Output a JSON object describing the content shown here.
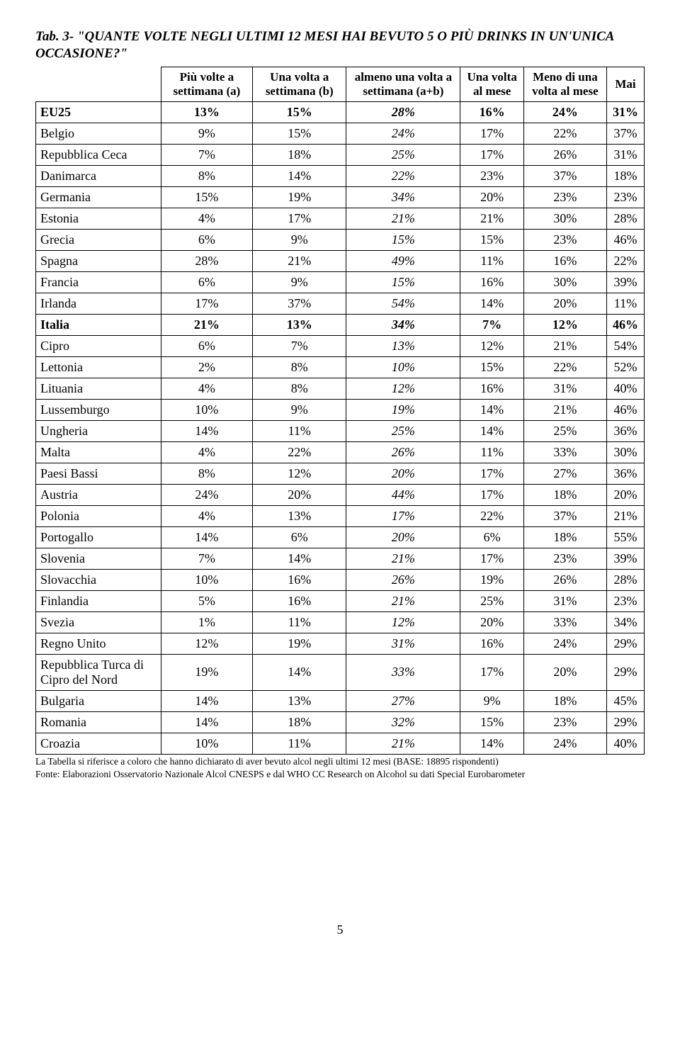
{
  "title": "Tab. 3- \"QUANTE VOLTE NEGLI ULTIMI 12 MESI HAI BEVUTO 5 O PIÙ DRINKS IN UN'UNICA OCCASIONE?\"",
  "headers": [
    "",
    "Più volte a settimana (a)",
    "Una volta a settimana (b)",
    "almeno una volta a settimana (a+b)",
    "Una volta al mese",
    "Meno di una volta al mese",
    "Mai"
  ],
  "boldRows": [
    "EU25",
    "Italia"
  ],
  "rows": [
    [
      "EU25",
      "13%",
      "15%",
      "28%",
      "16%",
      "24%",
      "31%"
    ],
    [
      "Belgio",
      "9%",
      "15%",
      "24%",
      "17%",
      "22%",
      "37%"
    ],
    [
      "Repubblica Ceca",
      "7%",
      "18%",
      "25%",
      "17%",
      "26%",
      "31%"
    ],
    [
      "Danimarca",
      "8%",
      "14%",
      "22%",
      "23%",
      "37%",
      "18%"
    ],
    [
      "Germania",
      "15%",
      "19%",
      "34%",
      "20%",
      "23%",
      "23%"
    ],
    [
      "Estonia",
      "4%",
      "17%",
      "21%",
      "21%",
      "30%",
      "28%"
    ],
    [
      "Grecia",
      "6%",
      "9%",
      "15%",
      "15%",
      "23%",
      "46%"
    ],
    [
      "Spagna",
      "28%",
      "21%",
      "49%",
      "11%",
      "16%",
      "22%"
    ],
    [
      "Francia",
      "6%",
      "9%",
      "15%",
      "16%",
      "30%",
      "39%"
    ],
    [
      "Irlanda",
      "17%",
      "37%",
      "54%",
      "14%",
      "20%",
      "11%"
    ],
    [
      "Italia",
      "21%",
      "13%",
      "34%",
      "7%",
      "12%",
      "46%"
    ],
    [
      "Cipro",
      "6%",
      "7%",
      "13%",
      "12%",
      "21%",
      "54%"
    ],
    [
      "Lettonia",
      "2%",
      "8%",
      "10%",
      "15%",
      "22%",
      "52%"
    ],
    [
      "Lituania",
      "4%",
      "8%",
      "12%",
      "16%",
      "31%",
      "40%"
    ],
    [
      "Lussemburgo",
      "10%",
      "9%",
      "19%",
      "14%",
      "21%",
      "46%"
    ],
    [
      "Ungheria",
      "14%",
      "11%",
      "25%",
      "14%",
      "25%",
      "36%"
    ],
    [
      "Malta",
      "4%",
      "22%",
      "26%",
      "11%",
      "33%",
      "30%"
    ],
    [
      "Paesi Bassi",
      "8%",
      "12%",
      "20%",
      "17%",
      "27%",
      "36%"
    ],
    [
      "Austria",
      "24%",
      "20%",
      "44%",
      "17%",
      "18%",
      "20%"
    ],
    [
      "Polonia",
      "4%",
      "13%",
      "17%",
      "22%",
      "37%",
      "21%"
    ],
    [
      "Portogallo",
      "14%",
      "6%",
      "20%",
      "6%",
      "18%",
      "55%"
    ],
    [
      "Slovenia",
      "7%",
      "14%",
      "21%",
      "17%",
      "23%",
      "39%"
    ],
    [
      "Slovacchia",
      "10%",
      "16%",
      "26%",
      "19%",
      "26%",
      "28%"
    ],
    [
      "Finlandia",
      "5%",
      "16%",
      "21%",
      "25%",
      "31%",
      "23%"
    ],
    [
      "Svezia",
      "1%",
      "11%",
      "12%",
      "20%",
      "33%",
      "34%"
    ],
    [
      "Regno Unito",
      "12%",
      "19%",
      "31%",
      "16%",
      "24%",
      "29%"
    ],
    [
      "Repubblica Turca di Cipro del Nord",
      "19%",
      "14%",
      "33%",
      "17%",
      "20%",
      "29%"
    ],
    [
      "Bulgaria",
      "14%",
      "13%",
      "27%",
      "9%",
      "18%",
      "45%"
    ],
    [
      "Romania",
      "14%",
      "18%",
      "32%",
      "15%",
      "23%",
      "29%"
    ],
    [
      "Croazia",
      "10%",
      "11%",
      "21%",
      "14%",
      "24%",
      "40%"
    ]
  ],
  "footnote1": "La Tabella si riferisce a coloro che hanno dichiarato di aver bevuto alcol negli ultimi 12 mesi (BASE: 18895 rispondenti)",
  "footnote2": "Fonte: Elaborazioni Osservatorio Nazionale Alcol CNESPS e dal WHO CC Research on Alcohol su dati Special Eurobarometer",
  "pageNumber": "5",
  "italicValueColumns": [
    3
  ]
}
